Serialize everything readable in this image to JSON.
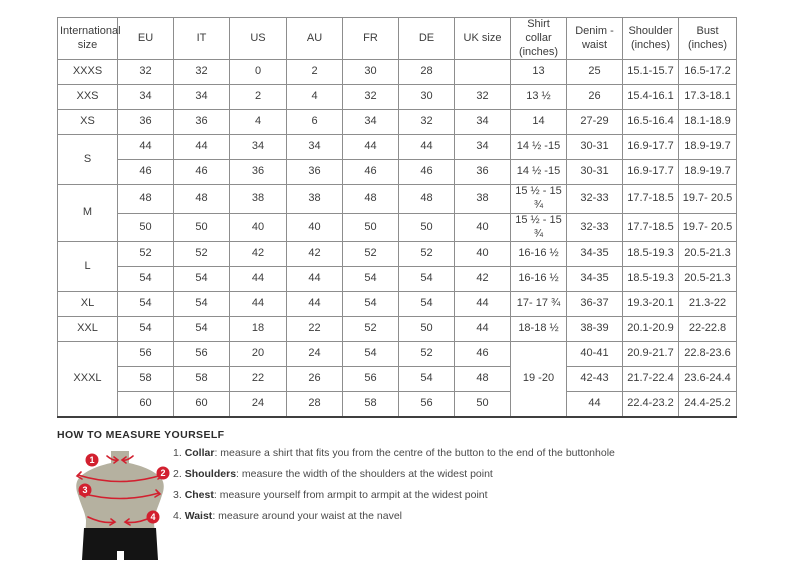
{
  "table": {
    "headers": [
      "International size",
      "EU",
      "IT",
      "US",
      "AU",
      "FR",
      "DE",
      "UK size",
      "Shirt collar (inches)",
      "Denim - waist",
      "Shoulder (inches)",
      "Bust (inches)"
    ],
    "rows": [
      [
        {
          "text": "XXXS",
          "label": true
        },
        "32",
        "32",
        "0",
        "2",
        "30",
        "28",
        "",
        "13",
        "25",
        "15.1-15.7",
        "16.5-17.2"
      ],
      [
        {
          "text": "XXS",
          "label": true
        },
        "34",
        "34",
        "2",
        "4",
        "32",
        "30",
        "32",
        "13 ½",
        "26",
        "15.4-16.1",
        "17.3-18.1"
      ],
      [
        {
          "text": "XS",
          "label": true
        },
        "36",
        "36",
        "4",
        "6",
        "34",
        "32",
        "34",
        "14",
        "27-29",
        "16.5-16.4",
        "18.1-18.9"
      ],
      [
        {
          "text": "S",
          "label": true,
          "rowspan": 2
        },
        "44",
        "44",
        "34",
        "34",
        "44",
        "44",
        "34",
        "14 ½ -15",
        "30-31",
        "16.9-17.7",
        "18.9-19.7"
      ],
      [
        "46",
        "46",
        "36",
        "36",
        "46",
        "46",
        "36",
        "14 ½ -15",
        "30-31",
        "16.9-17.7",
        "18.9-19.7"
      ],
      [
        {
          "text": "M",
          "label": true,
          "rowspan": 2
        },
        "48",
        "48",
        "38",
        "38",
        "48",
        "48",
        "38",
        "15 ½ - 15 ¾",
        "32-33",
        "17.7-18.5",
        "19.7- 20.5"
      ],
      [
        "50",
        "50",
        "40",
        "40",
        "50",
        "50",
        "40",
        "15 ½ - 15 ¾",
        "32-33",
        "17.7-18.5",
        "19.7- 20.5"
      ],
      [
        {
          "text": "L",
          "label": true,
          "rowspan": 2
        },
        "52",
        "52",
        "42",
        "42",
        "52",
        "52",
        "40",
        "16-16 ½",
        "34-35",
        "18.5-19.3",
        "20.5-21.3"
      ],
      [
        "54",
        "54",
        "44",
        "44",
        "54",
        "54",
        "42",
        "16-16 ½",
        "34-35",
        "18.5-19.3",
        "20.5-21.3"
      ],
      [
        {
          "text": "XL",
          "label": true
        },
        "54",
        "54",
        "44",
        "44",
        "54",
        "54",
        "44",
        "17- 17 ¾",
        "36-37",
        "19.3-20.1",
        "21.3-22"
      ],
      [
        {
          "text": "XXL",
          "label": true
        },
        "54",
        "54",
        "18",
        "22",
        "52",
        "50",
        "44",
        "18-18 ½",
        "38-39",
        "20.1-20.9",
        "22-22.8"
      ],
      [
        {
          "text": "XXXL",
          "label": true,
          "rowspan": 3
        },
        "56",
        "56",
        "20",
        "24",
        "54",
        "52",
        "46",
        {
          "text": "19 -20",
          "rowspan": 3
        },
        "40-41",
        "20.9-21.7",
        "22.8-23.6"
      ],
      [
        "58",
        "58",
        "22",
        "26",
        "56",
        "54",
        "48",
        "42-43",
        "21.7-22.4",
        "23.6-24.4"
      ],
      [
        "60",
        "60",
        "24",
        "28",
        "58",
        "56",
        "50",
        "44",
        "22.4-23.2",
        "24.4-25.2"
      ]
    ]
  },
  "measure": {
    "title": "HOW TO MEASURE YOURSELF",
    "steps": [
      {
        "num": "1",
        "label": "Collar",
        "text": ": measure a shirt that fits you from the centre of the button to the end of the buttonhole"
      },
      {
        "num": "2",
        "label": "Shoulders",
        "text": ": measure the width of the shoulders at the widest point"
      },
      {
        "num": "3",
        "label": "Chest",
        "text": ": measure yourself from armpit to armpit at the widest point"
      },
      {
        "num": "4",
        "label": "Waist",
        "text": ": measure around your waist at the navel"
      }
    ]
  },
  "figure": {
    "badges": [
      {
        "num": "1"
      },
      {
        "num": "2"
      },
      {
        "num": "3"
      },
      {
        "num": "4"
      }
    ],
    "body_color": "#b5b1a0",
    "shorts_color": "#141414",
    "line_color": "#d2202f"
  }
}
